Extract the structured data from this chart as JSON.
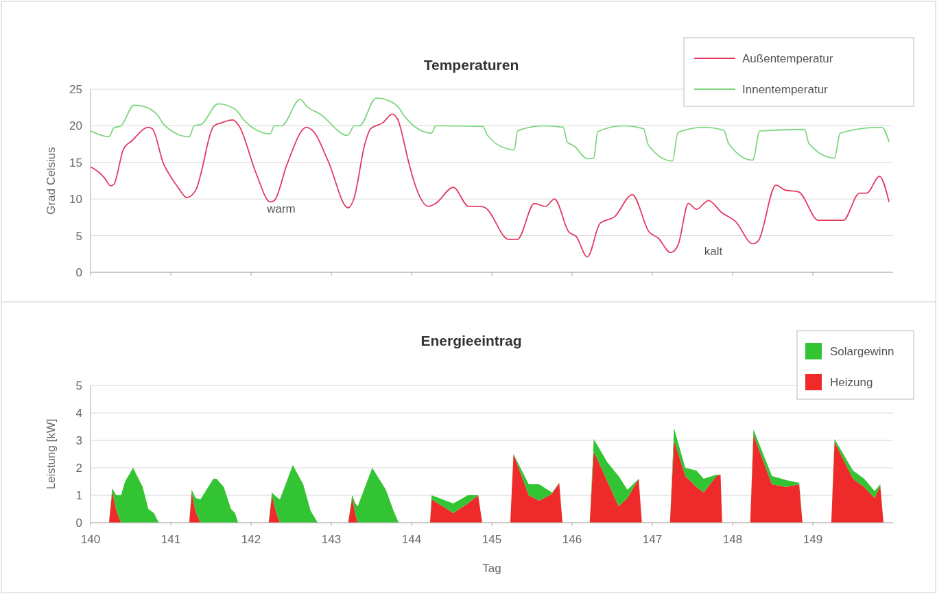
{
  "chart_data": [
    {
      "type": "line",
      "title": "Temperaturen",
      "ylabel": "Grad Celsius",
      "xlim": [
        140,
        150
      ],
      "xticks": [
        140,
        141,
        142,
        143,
        144,
        145,
        146,
        147,
        148,
        149
      ],
      "ylim": [
        0,
        25
      ],
      "yticks": [
        0,
        5,
        10,
        15,
        20,
        25
      ],
      "grid": "y",
      "legend": "top right",
      "tick_labels": "y",
      "annotations": [
        "warm",
        "kalt"
      ],
      "series": [
        {
          "name": "Außentemperatur",
          "color": "#e23a62",
          "x": [
            140,
            140.11,
            140.18,
            140.25,
            140.29,
            140.41,
            140.52,
            140.72,
            140.77,
            140.91,
            140.99,
            141.09,
            141.2,
            141.31,
            141.54,
            141.63,
            141.77,
            141.85,
            142.06,
            142.24,
            142.29,
            142.45,
            142.69,
            142.78,
            142.96,
            143.21,
            143.28,
            143.42,
            143.49,
            143.64,
            143.76,
            143.83,
            143.96,
            144.03,
            144.21,
            144.3,
            144.52,
            144.71,
            144.86,
            144.92,
            145.21,
            145.32,
            145.53,
            145.67,
            145.78,
            145.96,
            146.05,
            146.19,
            146.35,
            146.53,
            146.75,
            146.96,
            147.07,
            147.23,
            147.32,
            147.45,
            147.55,
            147.7,
            147.86,
            148.04,
            148.25,
            148.32,
            148.54,
            148.66,
            148.82,
            149.07,
            149.38,
            149.58,
            149.67,
            149.83,
            149.95
          ],
          "values": [
            14.4,
            13.6,
            12.8,
            11.8,
            12,
            16.8,
            18,
            19.8,
            19.6,
            14.8,
            13.2,
            11.6,
            10.2,
            11.2,
            20,
            20.4,
            20.8,
            20,
            13.6,
            9.6,
            9.8,
            14.8,
            19.8,
            19.2,
            15.2,
            8.8,
            10,
            17.6,
            19.6,
            20.4,
            21.6,
            20.8,
            15.2,
            12.4,
            9,
            9.4,
            11.6,
            9,
            9,
            8.8,
            4.5,
            4.5,
            9.4,
            9,
            10,
            5.5,
            4.9,
            2.1,
            6.7,
            7.6,
            10.6,
            5.5,
            4.7,
            2.7,
            3.7,
            9.4,
            8.6,
            9.8,
            8.2,
            6.9,
            3.9,
            4.3,
            11.9,
            11.2,
            11,
            7.1,
            7.1,
            10.8,
            10.8,
            13.1,
            9.6
          ]
        },
        {
          "name": "Innentemperatur",
          "color": "#7fd67f",
          "x": [
            140,
            140.23,
            140.29,
            140.38,
            140.54,
            140.64,
            140.84,
            140.91,
            141.23,
            141.29,
            141.38,
            141.59,
            141.81,
            141.91,
            142.24,
            142.29,
            142.38,
            142.61,
            142.7,
            142.86,
            143.2,
            143.29,
            143.35,
            143.56,
            143.64,
            143.83,
            143.92,
            144.25,
            144.3,
            144.89,
            144.94,
            145.21,
            145.28,
            145.32,
            145.64,
            145.89,
            145.94,
            146.03,
            146.19,
            146.27,
            146.32,
            146.64,
            146.89,
            146.95,
            147.25,
            147.32,
            147.64,
            147.89,
            147.95,
            148.25,
            148.34,
            148.9,
            148.95,
            149.27,
            149.34,
            149.86,
            149.95
          ],
          "values": [
            19.3,
            18.5,
            19.7,
            20,
            22.8,
            22.7,
            21.4,
            20.2,
            18.5,
            20,
            20.2,
            23,
            22.2,
            20.8,
            18.9,
            20,
            20,
            23.6,
            22.6,
            21.6,
            18.7,
            20,
            20,
            23.8,
            23.7,
            22.6,
            21.2,
            19,
            20,
            19.9,
            18.8,
            16.8,
            16.7,
            19.3,
            20,
            19.8,
            17.8,
            17.2,
            15.5,
            15.6,
            19.2,
            20,
            19.6,
            17.4,
            15.2,
            19.1,
            19.8,
            19.4,
            17.6,
            15.3,
            19.3,
            19.5,
            17.6,
            15.6,
            19,
            19.8,
            17.8
          ]
        }
      ]
    },
    {
      "type": "area",
      "title": "Energieeintrag",
      "xlabel": "Tag",
      "ylabel": "Leistung [kW]",
      "xlim": [
        140,
        150
      ],
      "xticks": [
        140,
        141,
        142,
        143,
        144,
        145,
        146,
        147,
        148,
        149
      ],
      "ylim": [
        0,
        5
      ],
      "yticks": [
        0,
        1,
        2,
        3,
        4,
        5
      ],
      "grid": "y",
      "legend": "top right",
      "stacked": true,
      "x": [
        140,
        140.23,
        140.27,
        140.32,
        140.38,
        140.43,
        140.53,
        140.65,
        140.72,
        140.79,
        140.85,
        141.23,
        141.26,
        141.31,
        141.37,
        141.53,
        141.57,
        141.66,
        141.75,
        141.8,
        141.84,
        142.22,
        142.26,
        142.31,
        142.36,
        142.52,
        142.65,
        142.74,
        142.83,
        143.21,
        143.26,
        143.3,
        143.33,
        143.51,
        143.68,
        143.78,
        143.84,
        144.23,
        144.25,
        144.52,
        144.7,
        144.83,
        144.88,
        145.23,
        145.27,
        145.46,
        145.59,
        145.75,
        145.84,
        145.88,
        146.22,
        146.27,
        146.44,
        146.58,
        146.69,
        146.83,
        146.87,
        147.22,
        147.27,
        147.41,
        147.55,
        147.64,
        147.8,
        147.85,
        147.87,
        148.22,
        148.26,
        148.49,
        148.67,
        148.83,
        148.87,
        149.23,
        149.27,
        149.5,
        149.64,
        149.77,
        149.84,
        149.88,
        150
      ],
      "series": [
        {
          "name": "Heizung",
          "color": "#ee2a2a",
          "values": [
            0,
            0,
            1.15,
            0.45,
            0,
            0,
            0,
            0,
            0,
            0,
            0,
            0,
            1.1,
            0.4,
            0,
            0,
            0,
            0,
            0,
            0,
            0,
            0,
            1,
            0.4,
            0,
            0,
            0,
            0,
            0,
            0,
            0.9,
            0.3,
            0,
            0,
            0,
            0,
            0,
            0,
            0.85,
            0.35,
            0.7,
            1,
            0,
            0,
            2.5,
            1,
            0.8,
            1.05,
            1.45,
            0,
            0,
            2.6,
            1.5,
            0.6,
            0.9,
            1.6,
            0,
            0,
            3,
            1.7,
            1.3,
            1.1,
            1.7,
            1.75,
            0,
            0,
            3.2,
            1.4,
            1.3,
            1.4,
            0,
            0,
            2.95,
            1.6,
            1.3,
            0.9,
            1.35,
            0,
            0
          ]
        },
        {
          "name": "Solargewinn",
          "color": "#33c433",
          "values": [
            0,
            0,
            0.1,
            0.55,
            1,
            1.5,
            2,
            1.3,
            0.5,
            0.35,
            0,
            0,
            0.1,
            0.5,
            0.85,
            1.6,
            1.6,
            1.3,
            0.5,
            0.35,
            0,
            0,
            0.1,
            0.55,
            0.85,
            2.1,
            1.4,
            0.45,
            0,
            0,
            0.1,
            0.4,
            0.6,
            2,
            1.2,
            0.4,
            0,
            0,
            0.15,
            0.35,
            0.3,
            0,
            0,
            0,
            0,
            0.4,
            0.6,
            0.05,
            0,
            0,
            0,
            0.45,
            0.7,
            1.1,
            0.3,
            0,
            0,
            0,
            0.45,
            0.3,
            0.6,
            0.5,
            0.05,
            0,
            0,
            0,
            0.2,
            0.3,
            0.25,
            0.05,
            0,
            0,
            0.1,
            0.3,
            0.3,
            0.25,
            0.05,
            0,
            0
          ]
        }
      ]
    }
  ]
}
